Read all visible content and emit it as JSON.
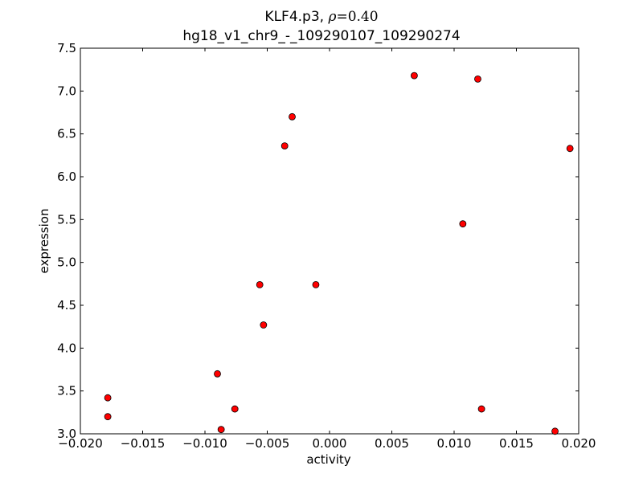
{
  "chart_data": {
    "type": "scatter",
    "title": {
      "name": "KLF4.p3,",
      "rho_symbol": "ρ",
      "rho_value": "=0.40",
      "subtitle": "hg18_v1_chr9_-_109290107_109290274"
    },
    "xlabel": "activity",
    "ylabel": "expression",
    "xlim": [
      -0.02,
      0.02
    ],
    "ylim": [
      3.0,
      7.5
    ],
    "xticks": [
      -0.02,
      -0.015,
      -0.01,
      -0.005,
      0.0,
      0.005,
      0.01,
      0.015,
      0.02
    ],
    "xtick_labels": [
      "−0.020",
      "−0.015",
      "−0.010",
      "−0.005",
      "0.000",
      "0.005",
      "0.010",
      "0.015",
      "0.020"
    ],
    "yticks": [
      3.0,
      3.5,
      4.0,
      4.5,
      5.0,
      5.5,
      6.0,
      6.5,
      7.0,
      7.5
    ],
    "ytick_labels": [
      "3.0",
      "3.5",
      "4.0",
      "4.5",
      "5.0",
      "5.5",
      "6.0",
      "6.5",
      "7.0",
      "7.5"
    ],
    "grid": false,
    "marker_color": "#ff0000",
    "marker_edge_color": "#000000",
    "points": [
      {
        "x": -0.0178,
        "y": 3.42
      },
      {
        "x": -0.0178,
        "y": 3.2
      },
      {
        "x": -0.009,
        "y": 3.7
      },
      {
        "x": -0.0087,
        "y": 3.05
      },
      {
        "x": -0.0076,
        "y": 3.29
      },
      {
        "x": -0.0056,
        "y": 4.74
      },
      {
        "x": -0.0053,
        "y": 4.27
      },
      {
        "x": -0.0036,
        "y": 6.36
      },
      {
        "x": -0.003,
        "y": 6.7
      },
      {
        "x": -0.0011,
        "y": 4.74
      },
      {
        "x": 0.0068,
        "y": 7.18
      },
      {
        "x": 0.0107,
        "y": 5.45
      },
      {
        "x": 0.0119,
        "y": 7.14
      },
      {
        "x": 0.0122,
        "y": 3.29
      },
      {
        "x": 0.0181,
        "y": 3.03
      },
      {
        "x": 0.0193,
        "y": 6.33
      }
    ]
  }
}
